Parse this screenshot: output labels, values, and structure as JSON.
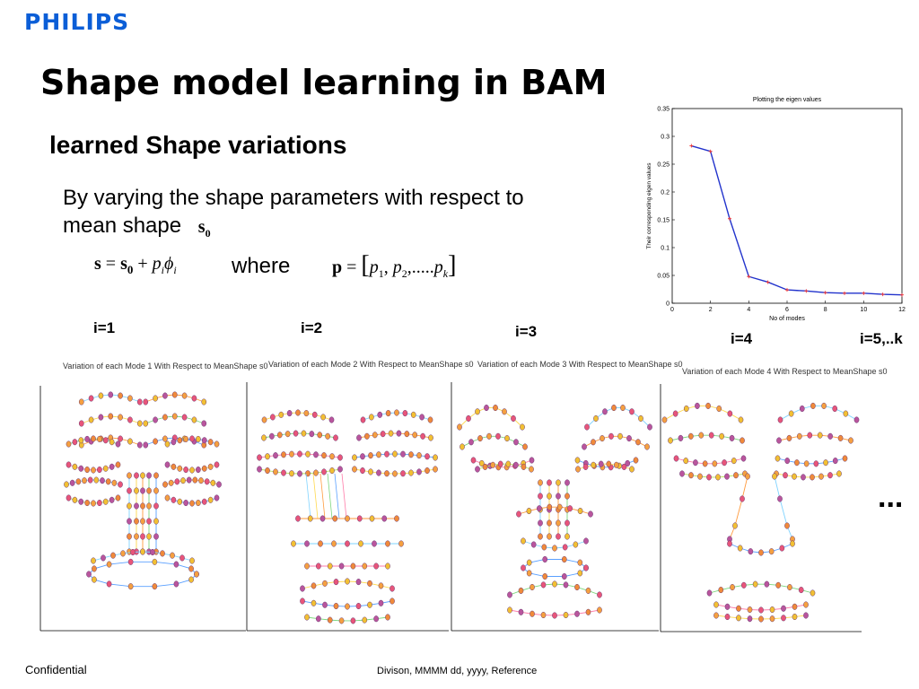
{
  "brand": {
    "logo_text": "PHILIPS",
    "color": "#0b5ed7"
  },
  "slide": {
    "title": "Shape model learning in BAM",
    "subtitle": "learned Shape variations",
    "body_line1": "By varying the shape parameters with respect to",
    "body_line2": "mean shape",
    "s0_symbol": "s",
    "s0_sub": "0",
    "where": "where",
    "ellipsis": "..."
  },
  "formula_s": {
    "lhs": "s",
    "eq": "=",
    "s": "s",
    "sub0": "0",
    "plus": "+",
    "p": "p",
    "i": "i",
    "phi": "ϕ"
  },
  "formula_p": {
    "lhs": "p",
    "eq": "=",
    "open": "[",
    "p1": "p",
    "s1": "1",
    "comma": ",",
    "p2": "p",
    "s2": "2",
    "dots": ",.....",
    "pk": "p",
    "sk": "k",
    "close": "]"
  },
  "mode_labels": [
    "i=1",
    "i=2",
    "i=3",
    "i=4",
    "i=5,..k"
  ],
  "mode_panels": [
    {
      "title": "Variation of each Mode 1 With Respect to MeanShape s0"
    },
    {
      "title": "Variation of each Mode 2 With Respect to MeanShape s0"
    },
    {
      "title": "Variation of each Mode 3 With Respect to MeanShape s0"
    },
    {
      "title": "Variation of each Mode 4 With Respect to MeanShape s0"
    }
  ],
  "chart_data": {
    "type": "line",
    "title": "Plotting the eigen values",
    "xlabel": "No of modes",
    "ylabel": "Their corresponding eigen values",
    "xlim": [
      0,
      12
    ],
    "ylim": [
      0,
      0.35
    ],
    "xticks": [
      "0",
      "2",
      "4",
      "6",
      "8",
      "10",
      "12"
    ],
    "yticks": [
      "0",
      "0.05",
      "0.1",
      "0.15",
      "0.2",
      "0.25",
      "0.3",
      "0.35"
    ],
    "x": [
      1,
      2,
      3,
      4,
      5,
      6,
      7,
      8,
      9,
      10,
      11,
      12
    ],
    "values": [
      0.283,
      0.273,
      0.152,
      0.048,
      0.038,
      0.024,
      0.022,
      0.019,
      0.018,
      0.018,
      0.016,
      0.015
    ],
    "line_color": "#2233cc",
    "marker_color": "#ee3333",
    "grid": false
  },
  "footer": {
    "left": "Confidential",
    "center": "Divison, MMMM dd, yyyy, Reference"
  }
}
